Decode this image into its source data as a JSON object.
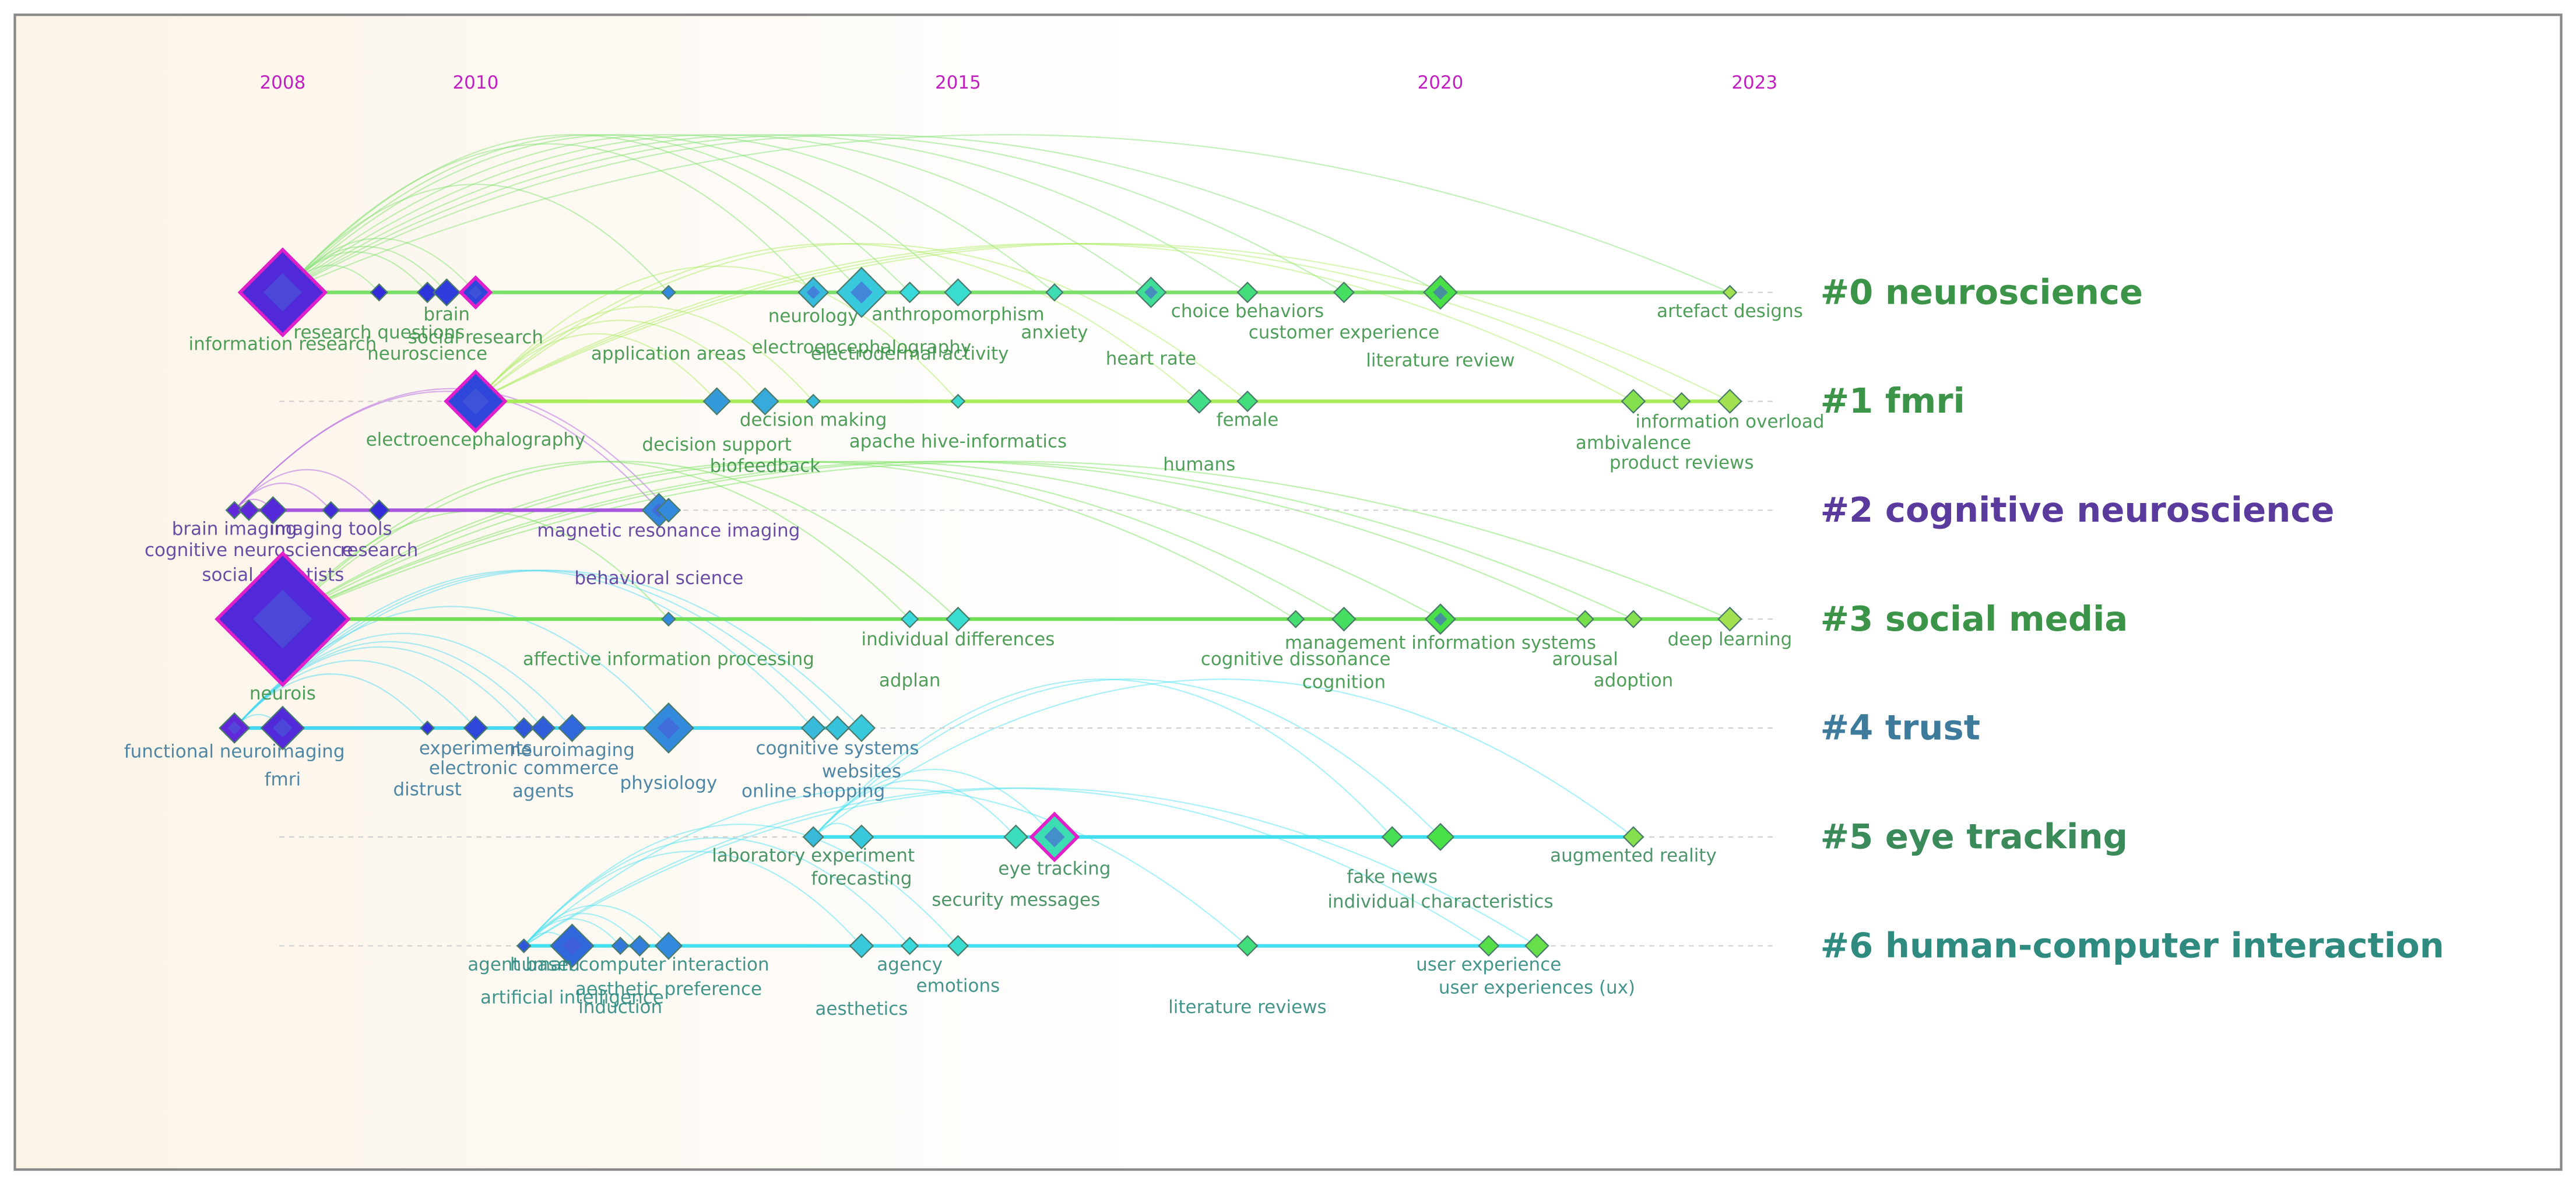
{
  "chart_data": {
    "type": "timeline",
    "xlim": [
      2007,
      2024
    ],
    "xticks": [
      2008,
      2010,
      2015,
      2020,
      2023
    ],
    "clusters": [
      {
        "name": "#0 neuroscience",
        "color": "#3c9448",
        "line_color": "#7be06a",
        "nodes": [
          {
            "label": "information research",
            "x": 2008,
            "size": 26,
            "burst": true
          },
          {
            "label": "research questions",
            "x": 2009,
            "size": 5
          },
          {
            "label": "neuroscience",
            "x": 2009.5,
            "size": 6
          },
          {
            "label": "brain",
            "x": 2009.7,
            "size": 8
          },
          {
            "label": "social research",
            "x": 2010,
            "size": 9,
            "burst": true
          },
          {
            "label": "application areas",
            "x": 2012,
            "size": 4
          },
          {
            "label": "neurology",
            "x": 2013.5,
            "size": 9
          },
          {
            "label": "electroencephalography",
            "x": 2014,
            "size": 15
          },
          {
            "label": "electrodermal activity",
            "x": 2014.5,
            "size": 6
          },
          {
            "label": "anthropomorphism",
            "x": 2015,
            "size": 8
          },
          {
            "label": "anxiety",
            "x": 2016,
            "size": 5
          },
          {
            "label": "heart rate",
            "x": 2017,
            "size": 9
          },
          {
            "label": "choice behaviors",
            "x": 2018,
            "size": 6
          },
          {
            "label": "customer experience",
            "x": 2019,
            "size": 6
          },
          {
            "label": "literature review",
            "x": 2020,
            "size": 10
          },
          {
            "label": "artefact designs",
            "x": 2023,
            "size": 4
          }
        ]
      },
      {
        "name": "#1 fmri",
        "color": "#3c9448",
        "line_color": "#a8ec5a",
        "nodes": [
          {
            "label": "electroencephalography",
            "x": 2010,
            "size": 18,
            "burst": true
          },
          {
            "label": "decision support",
            "x": 2012.5,
            "size": 8
          },
          {
            "label": "biofeedback",
            "x": 2013,
            "size": 8
          },
          {
            "label": "decision making",
            "x": 2013.5,
            "size": 4
          },
          {
            "label": "apache hive-informatics",
            "x": 2015,
            "size": 4
          },
          {
            "label": "humans",
            "x": 2017.5,
            "size": 7
          },
          {
            "label": "female",
            "x": 2018,
            "size": 6
          },
          {
            "label": "ambivalence",
            "x": 2022,
            "size": 7
          },
          {
            "label": "product reviews",
            "x": 2022.5,
            "size": 5
          },
          {
            "label": "information overload",
            "x": 2023,
            "size": 7
          }
        ]
      },
      {
        "name": "#2 cognitive neuroscience",
        "color": "#5a3a9c",
        "line_color": "#a855e0",
        "nodes": [
          {
            "label": "brain imaging",
            "x": 2007.5,
            "size": 5
          },
          {
            "label": "cognitive neuroscience",
            "x": 2007.65,
            "size": 6
          },
          {
            "label": "social scientists",
            "x": 2007.9,
            "size": 8
          },
          {
            "label": "imaging tools",
            "x": 2008.5,
            "size": 5
          },
          {
            "label": "research",
            "x": 2009,
            "size": 6
          },
          {
            "label": "behavioral science",
            "x": 2011.9,
            "size": 10
          },
          {
            "label": "magnetic resonance imaging",
            "x": 2012,
            "size": 7
          }
        ]
      },
      {
        "name": "#3 social media",
        "color": "#3c9448",
        "line_color": "#6fe055",
        "nodes": [
          {
            "label": "neurois",
            "x": 2008,
            "size": 40,
            "burst": true
          },
          {
            "label": "affective information processing",
            "x": 2012,
            "size": 4
          },
          {
            "label": "adplan",
            "x": 2014.5,
            "size": 5
          },
          {
            "label": "individual differences",
            "x": 2015,
            "size": 7
          },
          {
            "label": "cognitive dissonance",
            "x": 2018.5,
            "size": 5
          },
          {
            "label": "cognition",
            "x": 2019,
            "size": 7
          },
          {
            "label": "management information systems",
            "x": 2020,
            "size": 9
          },
          {
            "label": "arousal",
            "x": 2021.5,
            "size": 5
          },
          {
            "label": "adoption",
            "x": 2022,
            "size": 5
          },
          {
            "label": "deep learning",
            "x": 2023,
            "size": 7
          }
        ]
      },
      {
        "name": "#4 trust",
        "color": "#3d7a9c",
        "line_color": "#44d8f0",
        "nodes": [
          {
            "label": "functional neuroimaging",
            "x": 2007.5,
            "size": 9
          },
          {
            "label": "fmri",
            "x": 2008,
            "size": 13
          },
          {
            "label": "distrust",
            "x": 2009.5,
            "size": 4
          },
          {
            "label": "experiments",
            "x": 2010,
            "size": 7
          },
          {
            "label": "electronic commerce",
            "x": 2010.5,
            "size": 6
          },
          {
            "label": "agents",
            "x": 2010.7,
            "size": 7
          },
          {
            "label": "neuroimaging",
            "x": 2011,
            "size": 8
          },
          {
            "label": "physiology",
            "x": 2012,
            "size": 15
          },
          {
            "label": "online shopping",
            "x": 2013.5,
            "size": 7
          },
          {
            "label": "cognitive systems",
            "x": 2013.75,
            "size": 7
          },
          {
            "label": "websites",
            "x": 2014,
            "size": 8
          }
        ]
      },
      {
        "name": "#5 eye tracking",
        "color": "#3a8a5a",
        "line_color": "#44e0f0",
        "nodes": [
          {
            "label": "laboratory experiment",
            "x": 2013.5,
            "size": 6
          },
          {
            "label": "forecasting",
            "x": 2014,
            "size": 7
          },
          {
            "label": "security messages",
            "x": 2015.6,
            "size": 7
          },
          {
            "label": "eye tracking",
            "x": 2016,
            "size": 14,
            "burst": true
          },
          {
            "label": "fake news",
            "x": 2019.5,
            "size": 6
          },
          {
            "label": "individual characteristics",
            "x": 2020,
            "size": 8
          },
          {
            "label": "augmented reality",
            "x": 2022,
            "size": 6
          }
        ]
      },
      {
        "name": "#6 human-computer interaction",
        "color": "#2f8a80",
        "line_color": "#44e0f0",
        "nodes": [
          {
            "label": "agent based",
            "x": 2010.5,
            "size": 4
          },
          {
            "label": "artificial intelligence",
            "x": 2011,
            "size": 13
          },
          {
            "label": "induction",
            "x": 2011.5,
            "size": 5
          },
          {
            "label": "human computer interaction",
            "x": 2011.7,
            "size": 6
          },
          {
            "label": "aesthetic preference",
            "x": 2012,
            "size": 8
          },
          {
            "label": "aesthetics",
            "x": 2014,
            "size": 7
          },
          {
            "label": "agency",
            "x": 2014.5,
            "size": 5
          },
          {
            "label": "emotions",
            "x": 2015,
            "size": 6
          },
          {
            "label": "literature reviews",
            "x": 2018,
            "size": 6
          },
          {
            "label": "user experience",
            "x": 2020.5,
            "size": 6
          },
          {
            "label": "user experiences (ux)",
            "x": 2021,
            "size": 7
          }
        ]
      }
    ]
  }
}
